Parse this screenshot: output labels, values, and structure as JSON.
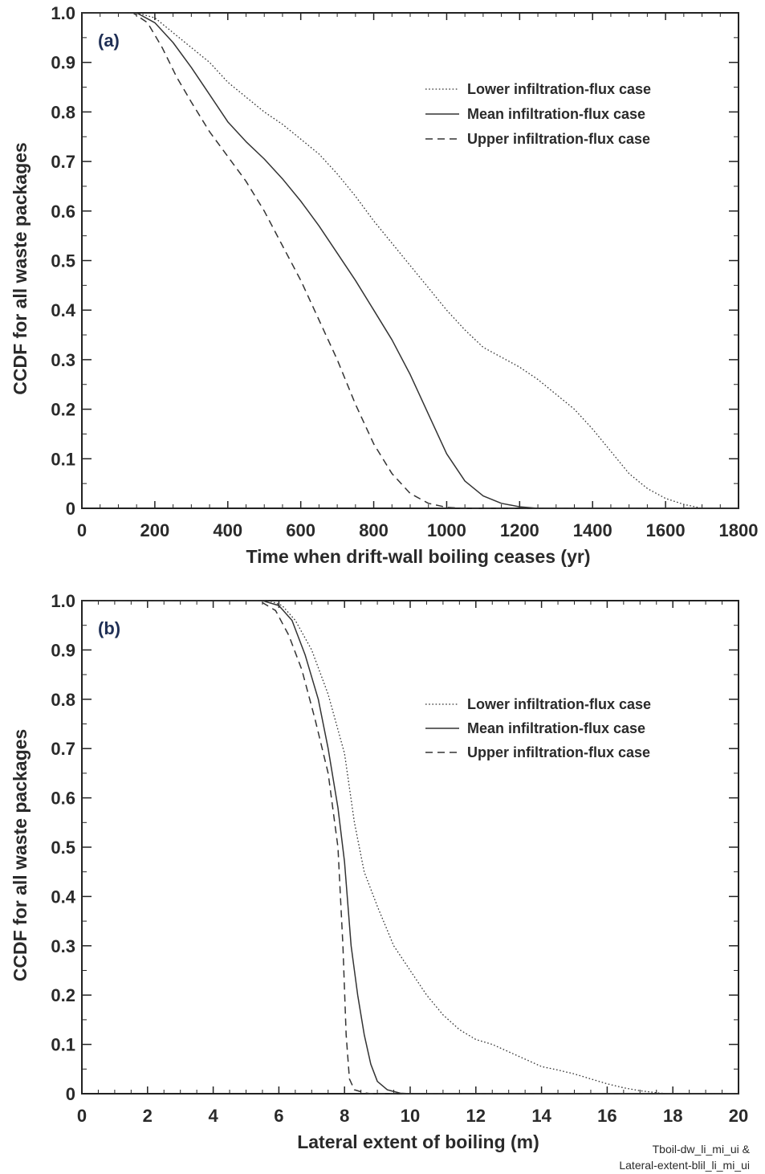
{
  "colors": {
    "frame": "#222222",
    "line": "#333333",
    "panel_label": "#1f2f55"
  },
  "source_note": [
    "Tboil-dw_li_mi_ui &",
    "Lateral-extent-blil_li_mi_ui"
  ],
  "chart_data": [
    {
      "type": "line",
      "panel_label": "(a)",
      "xlabel": "Time when drift-wall boiling ceases (yr)",
      "ylabel": "CCDF for all waste packages",
      "xlim": [
        0,
        1800
      ],
      "ylim": [
        0,
        1
      ],
      "xticks": [
        "0",
        "200",
        "400",
        "600",
        "800",
        "1000",
        "1200",
        "1400",
        "1600",
        "1800"
      ],
      "yticks": [
        "0",
        "0.1",
        "0.2",
        "0.3",
        "0.4",
        "0.5",
        "0.6",
        "0.7",
        "0.8",
        "0.9",
        "1.0"
      ],
      "legend_position": "top-right",
      "series": [
        {
          "name": "Lower infiltration-flux case",
          "style": "dotted",
          "points": [
            [
              0,
              1.0
            ],
            [
              150,
              1.0
            ],
            [
              200,
              0.99
            ],
            [
              250,
              0.96
            ],
            [
              300,
              0.93
            ],
            [
              350,
              0.9
            ],
            [
              400,
              0.86
            ],
            [
              450,
              0.83
            ],
            [
              500,
              0.8
            ],
            [
              550,
              0.775
            ],
            [
              600,
              0.745
            ],
            [
              650,
              0.715
            ],
            [
              700,
              0.675
            ],
            [
              750,
              0.63
            ],
            [
              800,
              0.58
            ],
            [
              850,
              0.535
            ],
            [
              900,
              0.49
            ],
            [
              950,
              0.445
            ],
            [
              1000,
              0.4
            ],
            [
              1050,
              0.36
            ],
            [
              1100,
              0.325
            ],
            [
              1150,
              0.305
            ],
            [
              1200,
              0.285
            ],
            [
              1250,
              0.26
            ],
            [
              1300,
              0.23
            ],
            [
              1350,
              0.2
            ],
            [
              1400,
              0.16
            ],
            [
              1450,
              0.115
            ],
            [
              1500,
              0.07
            ],
            [
              1550,
              0.04
            ],
            [
              1600,
              0.02
            ],
            [
              1650,
              0.008
            ],
            [
              1700,
              0.0
            ],
            [
              1800,
              0.0
            ]
          ]
        },
        {
          "name": "Mean infiltration-flux case",
          "style": "solid",
          "points": [
            [
              0,
              1.0
            ],
            [
              150,
              1.0
            ],
            [
              200,
              0.98
            ],
            [
              250,
              0.94
            ],
            [
              300,
              0.89
            ],
            [
              350,
              0.835
            ],
            [
              400,
              0.78
            ],
            [
              450,
              0.74
            ],
            [
              500,
              0.705
            ],
            [
              550,
              0.665
            ],
            [
              600,
              0.62
            ],
            [
              650,
              0.57
            ],
            [
              700,
              0.515
            ],
            [
              750,
              0.46
            ],
            [
              800,
              0.4
            ],
            [
              850,
              0.34
            ],
            [
              900,
              0.27
            ],
            [
              950,
              0.19
            ],
            [
              1000,
              0.11
            ],
            [
              1050,
              0.055
            ],
            [
              1100,
              0.025
            ],
            [
              1150,
              0.01
            ],
            [
              1200,
              0.003
            ],
            [
              1250,
              0.0
            ],
            [
              1800,
              0.0
            ]
          ]
        },
        {
          "name": "Upper infiltration-flux case",
          "style": "dashed",
          "points": [
            [
              0,
              1.0
            ],
            [
              140,
              1.0
            ],
            [
              180,
              0.98
            ],
            [
              220,
              0.93
            ],
            [
              260,
              0.87
            ],
            [
              300,
              0.82
            ],
            [
              350,
              0.76
            ],
            [
              400,
              0.71
            ],
            [
              450,
              0.66
            ],
            [
              500,
              0.6
            ],
            [
              550,
              0.53
            ],
            [
              600,
              0.46
            ],
            [
              650,
              0.38
            ],
            [
              700,
              0.3
            ],
            [
              750,
              0.21
            ],
            [
              800,
              0.13
            ],
            [
              850,
              0.07
            ],
            [
              900,
              0.03
            ],
            [
              950,
              0.01
            ],
            [
              1000,
              0.002
            ],
            [
              1050,
              0.0
            ],
            [
              1800,
              0.0
            ]
          ]
        }
      ]
    },
    {
      "type": "line",
      "panel_label": "(b)",
      "xlabel": "Lateral extent of boiling (m)",
      "ylabel": "CCDF for all waste packages",
      "xlim": [
        0,
        20
      ],
      "ylim": [
        0,
        1
      ],
      "xticks": [
        "0",
        "2",
        "4",
        "6",
        "8",
        "10",
        "12",
        "14",
        "16",
        "18",
        "20"
      ],
      "yticks": [
        "0",
        "0.1",
        "0.2",
        "0.3",
        "0.4",
        "0.5",
        "0.6",
        "0.7",
        "0.8",
        "0.9",
        "1.0"
      ],
      "legend_position": "top-right",
      "series": [
        {
          "name": "Lower infiltration-flux case",
          "style": "dotted",
          "points": [
            [
              0,
              1.0
            ],
            [
              5.7,
              1.0
            ],
            [
              6.1,
              0.99
            ],
            [
              6.5,
              0.96
            ],
            [
              7.0,
              0.9
            ],
            [
              7.5,
              0.81
            ],
            [
              8.0,
              0.69
            ],
            [
              8.3,
              0.55
            ],
            [
              8.6,
              0.45
            ],
            [
              9.0,
              0.38
            ],
            [
              9.5,
              0.3
            ],
            [
              10.0,
              0.25
            ],
            [
              10.5,
              0.2
            ],
            [
              11.0,
              0.16
            ],
            [
              11.5,
              0.13
            ],
            [
              12.0,
              0.11
            ],
            [
              12.5,
              0.1
            ],
            [
              13.0,
              0.085
            ],
            [
              13.5,
              0.07
            ],
            [
              14.0,
              0.055
            ],
            [
              14.5,
              0.048
            ],
            [
              15.0,
              0.04
            ],
            [
              15.5,
              0.03
            ],
            [
              16.0,
              0.02
            ],
            [
              16.5,
              0.012
            ],
            [
              17.0,
              0.006
            ],
            [
              17.5,
              0.002
            ],
            [
              17.8,
              0.0
            ],
            [
              20.0,
              0.0
            ]
          ]
        },
        {
          "name": "Mean infiltration-flux case",
          "style": "solid",
          "points": [
            [
              0,
              1.0
            ],
            [
              5.5,
              1.0
            ],
            [
              6.0,
              0.99
            ],
            [
              6.4,
              0.96
            ],
            [
              6.8,
              0.89
            ],
            [
              7.2,
              0.8
            ],
            [
              7.5,
              0.7
            ],
            [
              7.8,
              0.58
            ],
            [
              8.0,
              0.47
            ],
            [
              8.2,
              0.3
            ],
            [
              8.4,
              0.2
            ],
            [
              8.6,
              0.12
            ],
            [
              8.8,
              0.06
            ],
            [
              9.0,
              0.025
            ],
            [
              9.3,
              0.008
            ],
            [
              9.7,
              0.001
            ],
            [
              10.0,
              0.0
            ],
            [
              20.0,
              0.0
            ]
          ]
        },
        {
          "name": "Upper infiltration-flux case",
          "style": "dashed",
          "points": [
            [
              0,
              1.0
            ],
            [
              5.4,
              1.0
            ],
            [
              5.9,
              0.98
            ],
            [
              6.3,
              0.93
            ],
            [
              6.7,
              0.86
            ],
            [
              7.1,
              0.76
            ],
            [
              7.5,
              0.65
            ],
            [
              7.8,
              0.5
            ],
            [
              7.95,
              0.3
            ],
            [
              8.05,
              0.12
            ],
            [
              8.15,
              0.03
            ],
            [
              8.3,
              0.008
            ],
            [
              8.6,
              0.002
            ],
            [
              8.8,
              0.0
            ],
            [
              20.0,
              0.0
            ]
          ]
        }
      ]
    }
  ]
}
